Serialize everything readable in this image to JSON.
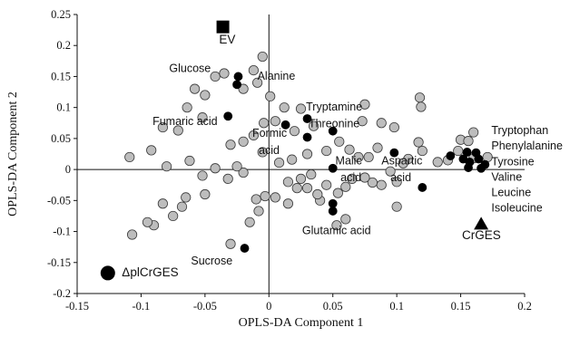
{
  "chart_data": {
    "type": "scatter",
    "xlabel": "OPLS-DA Component 1",
    "ylabel": "OPLS-DA Component 2",
    "xlim": [
      -0.15,
      0.2
    ],
    "ylim": [
      -0.2,
      0.25
    ],
    "x_ticks": [
      -0.15,
      -0.1,
      -0.05,
      0,
      0.05,
      0.1,
      0.15,
      0.2
    ],
    "y_ticks": [
      -0.2,
      -0.15,
      -0.1,
      -0.05,
      0,
      0.05,
      0.1,
      0.15,
      0.2,
      0.25
    ],
    "x_tick_labels": [
      "-0.15",
      "-0.1",
      "-0.05",
      "0",
      "0.05",
      "0.1",
      "0.15",
      "0.2"
    ],
    "y_tick_labels": [
      "-0.2",
      "-0.15",
      "-0.1",
      "-0.05",
      "0",
      "0.05",
      "0.1",
      "0.15",
      "0.2",
      "0.25"
    ],
    "grid": false,
    "colors": {
      "other": "#bdbdbd",
      "highlighted": "#000000",
      "outline": "#3a3a3a"
    },
    "group_markers": [
      {
        "label": "EV",
        "shape": "square",
        "x": -0.036,
        "y": 0.23
      },
      {
        "label": "CrGES",
        "shape": "triangle",
        "x": 0.166,
        "y": -0.088
      },
      {
        "label": "ΔplCrGES",
        "shape": "circle",
        "x": -0.126,
        "y": -0.167
      }
    ],
    "highlighted_points": [
      {
        "x": -0.024,
        "y": 0.15
      },
      {
        "x": -0.025,
        "y": 0.137
      },
      {
        "x": -0.032,
        "y": 0.086
      },
      {
        "x": 0.03,
        "y": 0.082
      },
      {
        "x": 0.013,
        "y": 0.072
      },
      {
        "x": 0.05,
        "y": 0.062
      },
      {
        "x": 0.098,
        "y": 0.027
      },
      {
        "x": 0.05,
        "y": 0.002
      },
      {
        "x": 0.03,
        "y": 0.052
      },
      {
        "x": 0.12,
        "y": -0.029
      },
      {
        "x": 0.05,
        "y": -0.055
      },
      {
        "x": 0.05,
        "y": -0.067
      },
      {
        "x": -0.019,
        "y": -0.127
      },
      {
        "x": 0.142,
        "y": 0.022
      },
      {
        "x": 0.155,
        "y": 0.028
      },
      {
        "x": 0.162,
        "y": 0.027
      },
      {
        "x": 0.152,
        "y": 0.017
      },
      {
        "x": 0.157,
        "y": 0.012
      },
      {
        "x": 0.164,
        "y": 0.017
      },
      {
        "x": 0.169,
        "y": 0.008
      },
      {
        "x": 0.156,
        "y": 0.003
      },
      {
        "x": 0.166,
        "y": 0.002
      }
    ],
    "other_points": [
      {
        "x": -0.005,
        "y": 0.182
      },
      {
        "x": -0.012,
        "y": 0.16
      },
      {
        "x": -0.035,
        "y": 0.155
      },
      {
        "x": -0.042,
        "y": 0.15
      },
      {
        "x": -0.02,
        "y": 0.13
      },
      {
        "x": -0.009,
        "y": 0.14
      },
      {
        "x": 0.001,
        "y": 0.118
      },
      {
        "x": -0.05,
        "y": 0.12
      },
      {
        "x": -0.058,
        "y": 0.13
      },
      {
        "x": -0.064,
        "y": 0.1
      },
      {
        "x": -0.052,
        "y": 0.084
      },
      {
        "x": -0.071,
        "y": 0.063
      },
      {
        "x": -0.083,
        "y": 0.068
      },
      {
        "x": -0.092,
        "y": 0.031
      },
      {
        "x": -0.08,
        "y": 0.005
      },
      {
        "x": -0.109,
        "y": 0.02
      },
      {
        "x": -0.062,
        "y": 0.014
      },
      {
        "x": -0.042,
        "y": 0.002
      },
      {
        "x": -0.03,
        "y": 0.04
      },
      {
        "x": -0.02,
        "y": 0.045
      },
      {
        "x": -0.012,
        "y": 0.055
      },
      {
        "x": -0.004,
        "y": 0.075
      },
      {
        "x": 0.005,
        "y": 0.078
      },
      {
        "x": 0.012,
        "y": 0.1
      },
      {
        "x": 0.025,
        "y": 0.098
      },
      {
        "x": 0.02,
        "y": 0.062
      },
      {
        "x": 0.035,
        "y": 0.07
      },
      {
        "x": 0.03,
        "y": 0.025
      },
      {
        "x": 0.018,
        "y": 0.016
      },
      {
        "x": 0.008,
        "y": 0.011
      },
      {
        "x": 0.045,
        "y": 0.03
      },
      {
        "x": 0.055,
        "y": 0.045
      },
      {
        "x": 0.063,
        "y": 0.032
      },
      {
        "x": 0.07,
        "y": 0.02
      },
      {
        "x": 0.078,
        "y": 0.02
      },
      {
        "x": 0.085,
        "y": 0.035
      },
      {
        "x": 0.073,
        "y": 0.078
      },
      {
        "x": 0.088,
        "y": 0.075
      },
      {
        "x": 0.075,
        "y": 0.105
      },
      {
        "x": 0.098,
        "y": 0.068
      },
      {
        "x": 0.118,
        "y": 0.116
      },
      {
        "x": 0.119,
        "y": 0.101
      },
      {
        "x": 0.109,
        "y": 0.017
      },
      {
        "x": 0.105,
        "y": 0.01
      },
      {
        "x": 0.12,
        "y": 0.03
      },
      {
        "x": 0.117,
        "y": 0.044
      },
      {
        "x": 0.095,
        "y": -0.003
      },
      {
        "x": 0.1,
        "y": -0.02
      },
      {
        "x": 0.088,
        "y": -0.025
      },
      {
        "x": 0.081,
        "y": -0.021
      },
      {
        "x": 0.075,
        "y": -0.013
      },
      {
        "x": 0.065,
        "y": -0.015
      },
      {
        "x": 0.06,
        "y": -0.028
      },
      {
        "x": 0.054,
        "y": -0.038
      },
      {
        "x": 0.045,
        "y": -0.025
      },
      {
        "x": 0.04,
        "y": -0.05
      },
      {
        "x": 0.038,
        "y": -0.04
      },
      {
        "x": 0.03,
        "y": -0.03
      },
      {
        "x": 0.022,
        "y": -0.03
      },
      {
        "x": 0.015,
        "y": -0.055
      },
      {
        "x": 0.005,
        "y": -0.045
      },
      {
        "x": -0.003,
        "y": -0.043
      },
      {
        "x": -0.01,
        "y": -0.048
      },
      {
        "x": 0.015,
        "y": -0.02
      },
      {
        "x": 0.025,
        "y": -0.015
      },
      {
        "x": 0.033,
        "y": -0.008
      },
      {
        "x": 0.053,
        "y": -0.09
      },
      {
        "x": 0.06,
        "y": -0.08
      },
      {
        "x": 0.1,
        "y": -0.06
      },
      {
        "x": -0.02,
        "y": -0.005
      },
      {
        "x": -0.025,
        "y": 0.005
      },
      {
        "x": -0.005,
        "y": 0.028
      },
      {
        "x": -0.032,
        "y": -0.015
      },
      {
        "x": -0.052,
        "y": -0.01
      },
      {
        "x": -0.05,
        "y": -0.04
      },
      {
        "x": -0.065,
        "y": -0.045
      },
      {
        "x": -0.068,
        "y": -0.06
      },
      {
        "x": -0.075,
        "y": -0.075
      },
      {
        "x": -0.083,
        "y": -0.055
      },
      {
        "x": -0.09,
        "y": -0.09
      },
      {
        "x": -0.095,
        "y": -0.085
      },
      {
        "x": -0.107,
        "y": -0.105
      },
      {
        "x": -0.03,
        "y": -0.12
      },
      {
        "x": -0.008,
        "y": -0.067
      },
      {
        "x": -0.015,
        "y": -0.085
      },
      {
        "x": 0.15,
        "y": 0.048
      },
      {
        "x": 0.156,
        "y": 0.046
      },
      {
        "x": 0.148,
        "y": 0.03
      },
      {
        "x": 0.16,
        "y": 0.018
      },
      {
        "x": 0.14,
        "y": 0.015
      },
      {
        "x": 0.132,
        "y": 0.012
      },
      {
        "x": 0.16,
        "y": 0.06
      },
      {
        "x": 0.171,
        "y": 0.02
      }
    ],
    "annotations": [
      {
        "text": "EV",
        "x": -0.039,
        "y": 0.203,
        "anchor": "start"
      },
      {
        "text": "Glucose",
        "x": -0.078,
        "y": 0.157,
        "anchor": "start"
      },
      {
        "text": "Alanine",
        "x": -0.009,
        "y": 0.145,
        "anchor": "start"
      },
      {
        "text": "Tryptamine",
        "x": 0.029,
        "y": 0.095,
        "anchor": "start"
      },
      {
        "text": "Fumaric acid",
        "x": -0.091,
        "y": 0.072,
        "anchor": "start"
      },
      {
        "text": "Threonine",
        "x": 0.031,
        "y": 0.068,
        "anchor": "start"
      },
      {
        "text": "Formic",
        "x": -0.013,
        "y": 0.053,
        "anchor": "start"
      },
      {
        "text": "acid",
        "x": -0.008,
        "y": 0.025,
        "anchor": "start"
      },
      {
        "text": "Malic",
        "x": 0.052,
        "y": 0.008,
        "anchor": "start"
      },
      {
        "text": "acid",
        "x": 0.056,
        "y": -0.019,
        "anchor": "start"
      },
      {
        "text": "Aspartic",
        "x": 0.088,
        "y": 0.008,
        "anchor": "start"
      },
      {
        "text": "acid",
        "x": 0.095,
        "y": -0.019,
        "anchor": "start"
      },
      {
        "text": "Tryptophan",
        "x": 0.174,
        "y": 0.057,
        "anchor": "start"
      },
      {
        "text": "Phenylalanine",
        "x": 0.174,
        "y": 0.032,
        "anchor": "start"
      },
      {
        "text": "Tyrosine",
        "x": 0.174,
        "y": 0.007,
        "anchor": "start"
      },
      {
        "text": "Valine",
        "x": 0.174,
        "y": -0.018,
        "anchor": "start"
      },
      {
        "text": "Leucine",
        "x": 0.174,
        "y": -0.043,
        "anchor": "start"
      },
      {
        "text": "Isoleucine",
        "x": 0.174,
        "y": -0.068,
        "anchor": "start"
      },
      {
        "text": "Glutamic acid",
        "x": 0.026,
        "y": -0.104,
        "anchor": "start"
      },
      {
        "text": "CrGES",
        "x": 0.151,
        "y": -0.112,
        "anchor": "start"
      },
      {
        "text": "Sucrose",
        "x": -0.061,
        "y": -0.153,
        "anchor": "start"
      },
      {
        "text": "ΔplCrGES",
        "x": -0.115,
        "y": -0.172,
        "anchor": "start"
      }
    ]
  }
}
